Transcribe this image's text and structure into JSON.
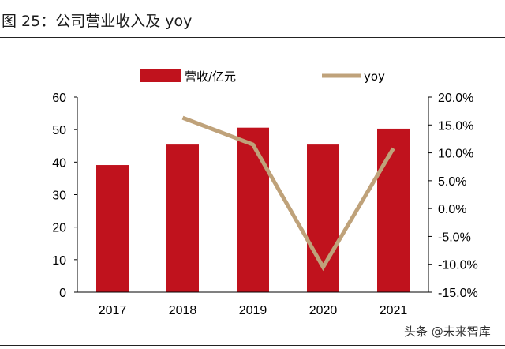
{
  "figure": {
    "title": "图 25：公司营业收入及 yoy",
    "watermark": "头条 @未来智库"
  },
  "chart_data": {
    "type": "bar+line",
    "categories": [
      "2017",
      "2018",
      "2019",
      "2020",
      "2021"
    ],
    "series": [
      {
        "name": "营收/亿元",
        "type": "bar",
        "axis": "left",
        "color": "#c0121d",
        "values": [
          39.1,
          45.4,
          50.6,
          45.4,
          50.3
        ]
      },
      {
        "name": "yoy",
        "type": "line",
        "axis": "right",
        "color": "#bfa27a",
        "values": [
          null,
          16.3,
          11.5,
          -10.5,
          10.8
        ]
      }
    ],
    "left_axis": {
      "min": 0,
      "max": 60,
      "ticks": [
        "0",
        "10",
        "20",
        "30",
        "40",
        "50",
        "60"
      ]
    },
    "right_axis": {
      "min": -15,
      "max": 20,
      "ticks": [
        "-15.0%",
        "-10.0%",
        "-5.0%",
        "0.0%",
        "5.0%",
        "10.0%",
        "15.0%",
        "20.0%"
      ]
    },
    "legend_position": "top-center",
    "grid": false
  }
}
